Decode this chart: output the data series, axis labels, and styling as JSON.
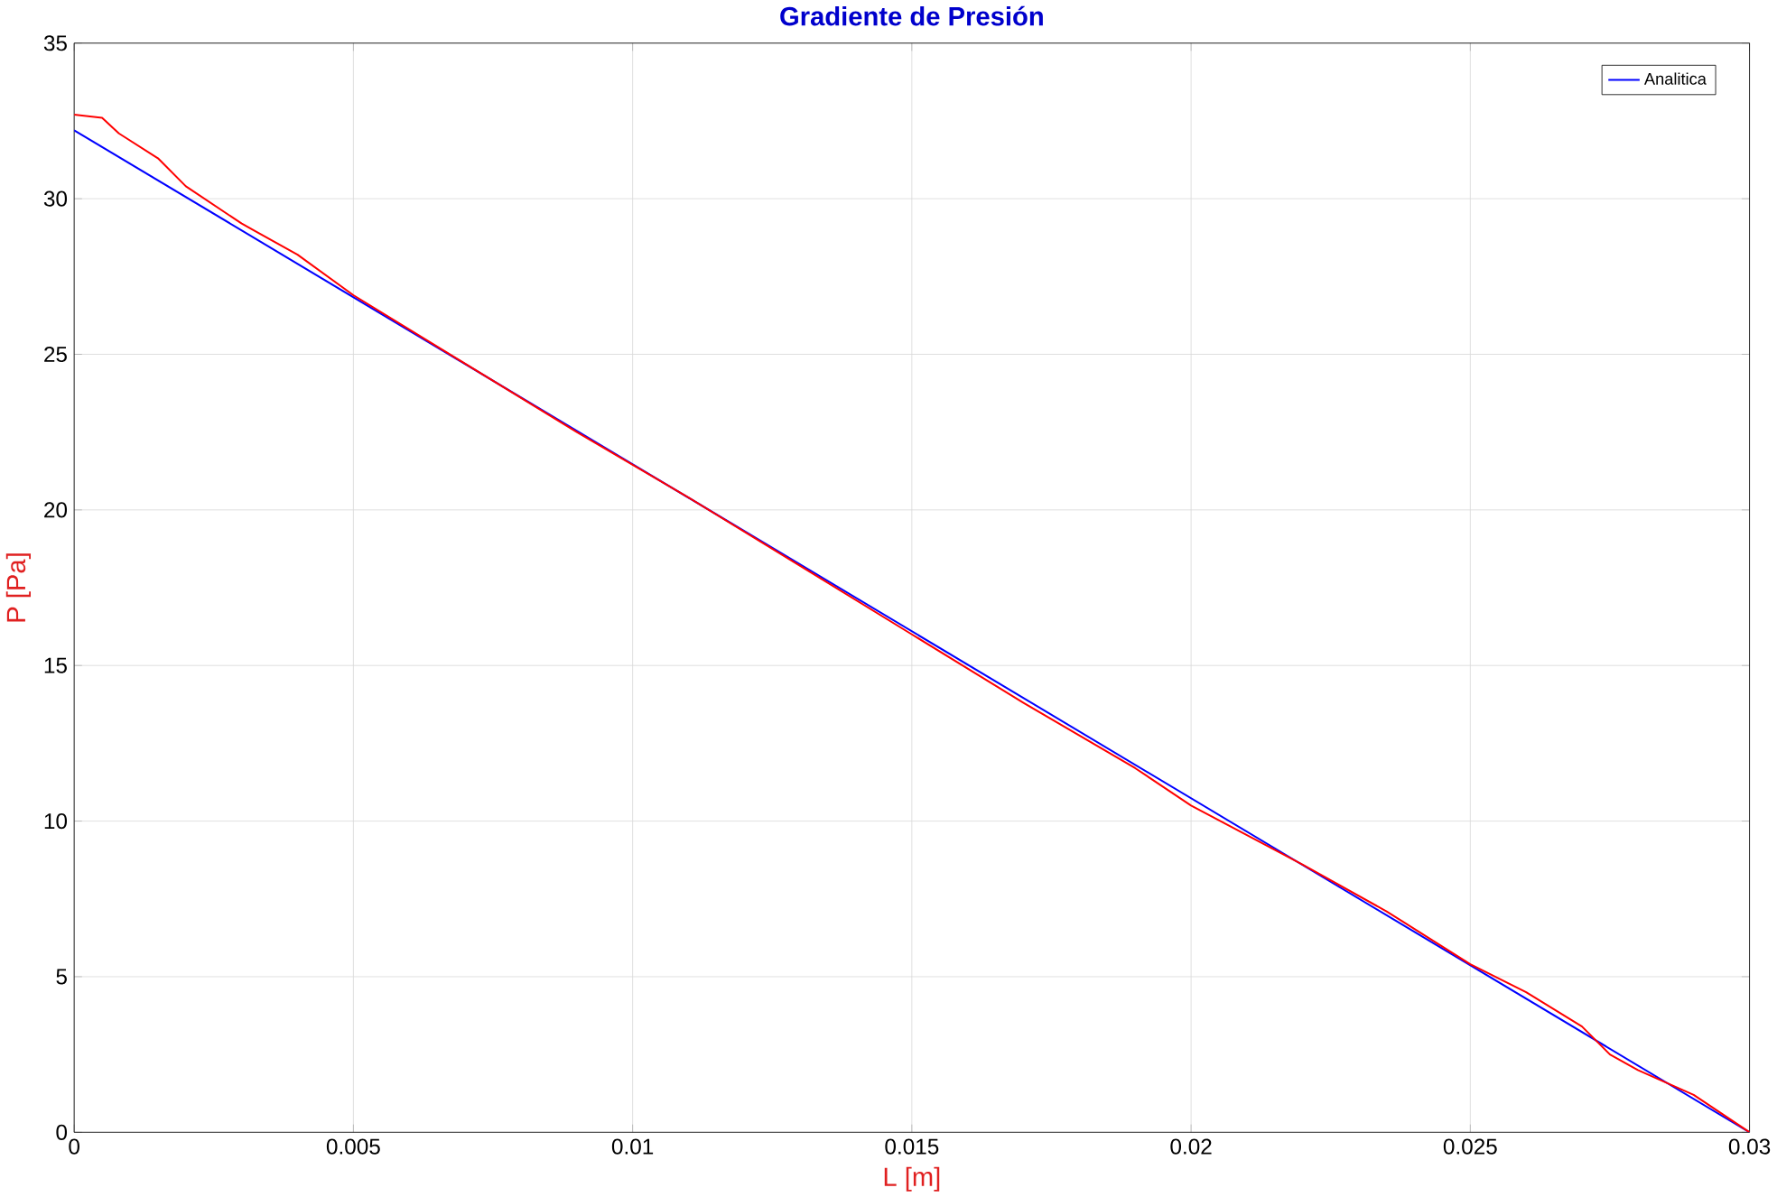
{
  "chart_data": {
    "type": "line",
    "title": "**Gradiente de Presión**",
    "xlabel": "L [m]",
    "ylabel": "P [Pa]",
    "xlim": [
      0,
      0.03
    ],
    "ylim": [
      0,
      35
    ],
    "xticks": [
      0,
      0.005,
      0.01,
      0.015,
      0.02,
      0.025,
      0.03
    ],
    "yticks": [
      0,
      5,
      10,
      15,
      20,
      25,
      30,
      35
    ],
    "grid": true,
    "legend": "top right",
    "series": [
      {
        "name": "Analitica",
        "color": "#0000ff",
        "x": [
          0,
          0.03
        ],
        "values": [
          32.2,
          0
        ]
      },
      {
        "color": "#ff0000",
        "x": [
          0,
          0.0005,
          0.0008,
          0.0015,
          0.002,
          0.003,
          0.004,
          0.005,
          0.007,
          0.009,
          0.011,
          0.013,
          0.015,
          0.017,
          0.019,
          0.02,
          0.022,
          0.0235,
          0.025,
          0.026,
          0.027,
          0.0275,
          0.028,
          0.029,
          0.03
        ],
        "values": [
          32.7,
          32.6,
          32.1,
          31.3,
          30.4,
          29.2,
          28.2,
          26.9,
          24.7,
          22.5,
          20.4,
          18.2,
          16.0,
          13.8,
          11.7,
          10.5,
          8.6,
          7.1,
          5.4,
          4.5,
          3.4,
          2.5,
          2.0,
          1.2,
          0
        ]
      }
    ]
  }
}
